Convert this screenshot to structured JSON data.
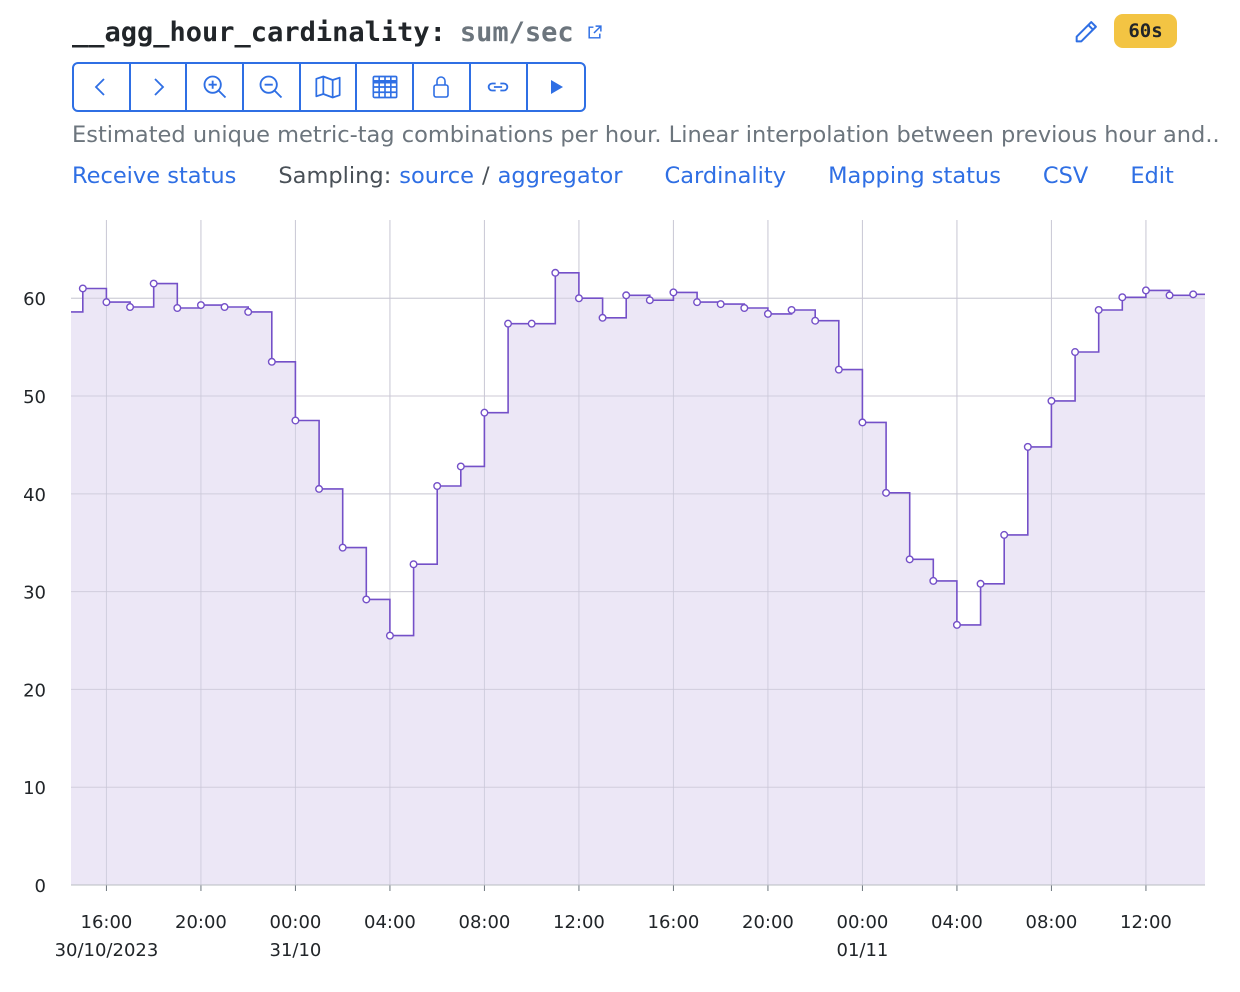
{
  "header": {
    "metric_name": "__agg_hour_cardinality",
    "separator": ":",
    "aggregation": "sum/sec",
    "refresh_label": "60s"
  },
  "toolbar": {
    "buttons": [
      {
        "name": "back-button",
        "icon": "chevron-left-icon"
      },
      {
        "name": "forward-button",
        "icon": "chevron-right-icon"
      },
      {
        "name": "zoom-in-button",
        "icon": "zoom-in-icon"
      },
      {
        "name": "zoom-out-button",
        "icon": "zoom-out-icon"
      },
      {
        "name": "map-button",
        "icon": "map-icon"
      },
      {
        "name": "table-button",
        "icon": "table-icon"
      },
      {
        "name": "lock-button",
        "icon": "lock-icon"
      },
      {
        "name": "link-button",
        "icon": "link-icon"
      },
      {
        "name": "play-button",
        "icon": "play-icon"
      }
    ]
  },
  "description": "Estimated unique metric-tag combinations per hour. Linear interpolation between previous hour and..",
  "links": {
    "receive_status": "Receive status",
    "sampling_label": "Sampling:",
    "source": "source",
    "slash": "/",
    "aggregator": "aggregator",
    "cardinality": "Cardinality",
    "mapping_status": "Mapping status",
    "csv": "CSV",
    "edit": "Edit"
  },
  "colors": {
    "accent": "#2f6fe4",
    "series_line": "#7450c8",
    "series_fill": "#e9e3f5",
    "badge": "#f3c443"
  },
  "chart_data": {
    "type": "area",
    "step": true,
    "x_start": "2023-10-30 14:30",
    "x_end": "2023-11-01 14:30",
    "x_unit": "hour",
    "xtick_labels": [
      "16:00",
      "20:00",
      "00:00",
      "04:00",
      "08:00",
      "12:00",
      "16:00",
      "20:00",
      "00:00",
      "04:00",
      "08:00",
      "12:00"
    ],
    "xtick_sublabels": [
      "30/10/2023",
      "",
      "31/10",
      "",
      "",
      "",
      "",
      "",
      "01/11",
      "",
      "",
      ""
    ],
    "ytick_labels": [
      "0",
      "10",
      "20",
      "30",
      "40",
      "50",
      "60"
    ],
    "ylim": [
      0,
      68
    ],
    "grid": true,
    "series": [
      {
        "x": [
          "2023-10-30 15:00",
          "2023-10-30 16:00",
          "2023-10-30 17:00",
          "2023-10-30 18:00",
          "2023-10-30 19:00",
          "2023-10-30 20:00",
          "2023-10-30 21:00",
          "2023-10-30 22:00",
          "2023-10-30 23:00",
          "2023-10-31 00:00",
          "2023-10-31 01:00",
          "2023-10-31 02:00",
          "2023-10-31 03:00",
          "2023-10-31 04:00",
          "2023-10-31 05:00",
          "2023-10-31 06:00",
          "2023-10-31 07:00",
          "2023-10-31 08:00",
          "2023-10-31 09:00",
          "2023-10-31 10:00",
          "2023-10-31 11:00",
          "2023-10-31 12:00",
          "2023-10-31 13:00",
          "2023-10-31 14:00",
          "2023-10-31 15:00",
          "2023-10-31 16:00",
          "2023-10-31 17:00",
          "2023-10-31 18:00",
          "2023-10-31 19:00",
          "2023-10-31 20:00",
          "2023-10-31 21:00",
          "2023-10-31 22:00",
          "2023-10-31 23:00",
          "2023-11-01 00:00",
          "2023-11-01 01:00",
          "2023-11-01 02:00",
          "2023-11-01 03:00",
          "2023-11-01 04:00",
          "2023-11-01 05:00",
          "2023-11-01 06:00",
          "2023-11-01 07:00",
          "2023-11-01 08:00",
          "2023-11-01 09:00",
          "2023-11-01 10:00",
          "2023-11-01 11:00",
          "2023-11-01 12:00",
          "2023-11-01 13:00",
          "2023-11-01 14:00"
        ],
        "values": [
          61.0,
          59.6,
          59.1,
          61.5,
          59.0,
          59.3,
          59.1,
          58.6,
          53.5,
          47.5,
          40.5,
          34.5,
          29.2,
          25.5,
          32.8,
          40.8,
          42.8,
          48.3,
          57.4,
          57.4,
          62.6,
          60.0,
          58.0,
          60.3,
          59.8,
          60.6,
          59.6,
          59.4,
          59.0,
          58.4,
          58.8,
          57.7,
          52.7,
          47.3,
          40.1,
          33.3,
          31.1,
          26.6,
          30.8,
          35.8,
          44.8,
          49.5,
          54.5,
          58.8,
          60.1,
          60.8,
          60.3,
          60.4
        ],
        "start_value": 58.6
      }
    ]
  }
}
